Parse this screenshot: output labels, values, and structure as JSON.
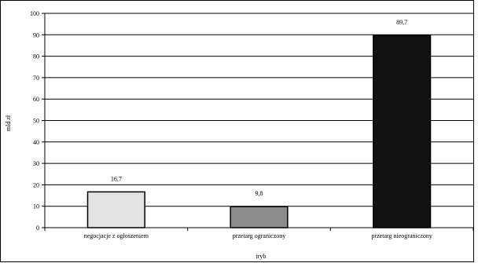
{
  "chart_data": {
    "type": "bar",
    "title": "",
    "xlabel": "tryb",
    "ylabel": "mld zł",
    "ylim": [
      0,
      100
    ],
    "yticks": [
      0,
      10,
      20,
      30,
      40,
      50,
      60,
      70,
      80,
      90,
      100
    ],
    "grid": true,
    "legend": "none",
    "categories": [
      "negocjacje z ogłoszeniem",
      "przetarg ograniczony",
      "przetarg nieograniczony"
    ],
    "values": [
      16.7,
      9.8,
      89.7
    ],
    "value_labels": [
      "16,7",
      "9,8",
      "89,7"
    ],
    "bar_colors": [
      "#e3e3e3",
      "#8c8c8c",
      "#111111"
    ]
  }
}
